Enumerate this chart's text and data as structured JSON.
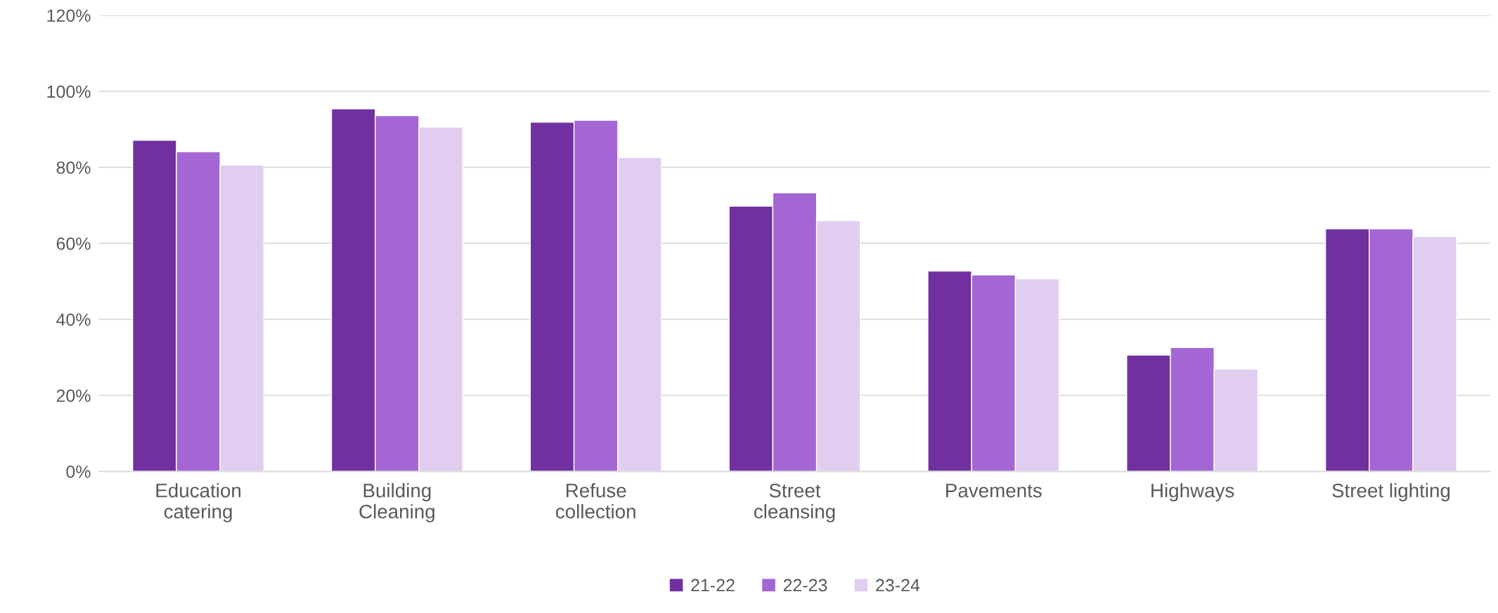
{
  "chart_data": {
    "type": "bar",
    "categories": [
      "Education\ncatering",
      "Building\nCleaning",
      "Refuse\ncollection",
      "Street\ncleansing",
      "Pavements",
      "Highways",
      "Street lighting"
    ],
    "series": [
      {
        "name": "21-22",
        "color": "#7030a0",
        "values": [
          87.1,
          95.4,
          91.9,
          69.8,
          52.7,
          30.6,
          63.8
        ]
      },
      {
        "name": "22-23",
        "color": "#a366d4",
        "values": [
          84.1,
          93.6,
          92.4,
          73.3,
          51.7,
          32.6,
          63.8
        ]
      },
      {
        "name": "23-24",
        "color": "#e0cdef",
        "values": [
          80.6,
          90.6,
          82.6,
          66.0,
          50.7,
          26.9,
          61.8
        ]
      }
    ],
    "ylim": [
      0,
      120
    ],
    "yticks": [
      {
        "value": 0,
        "label": "0%"
      },
      {
        "value": 20,
        "label": "20%"
      },
      {
        "value": 40,
        "label": "40%"
      },
      {
        "value": 60,
        "label": "60%"
      },
      {
        "value": 80,
        "label": "80%"
      },
      {
        "value": 100,
        "label": "100%"
      },
      {
        "value": 120,
        "label": "120%"
      }
    ],
    "grid": "y",
    "legend": "bottom"
  }
}
